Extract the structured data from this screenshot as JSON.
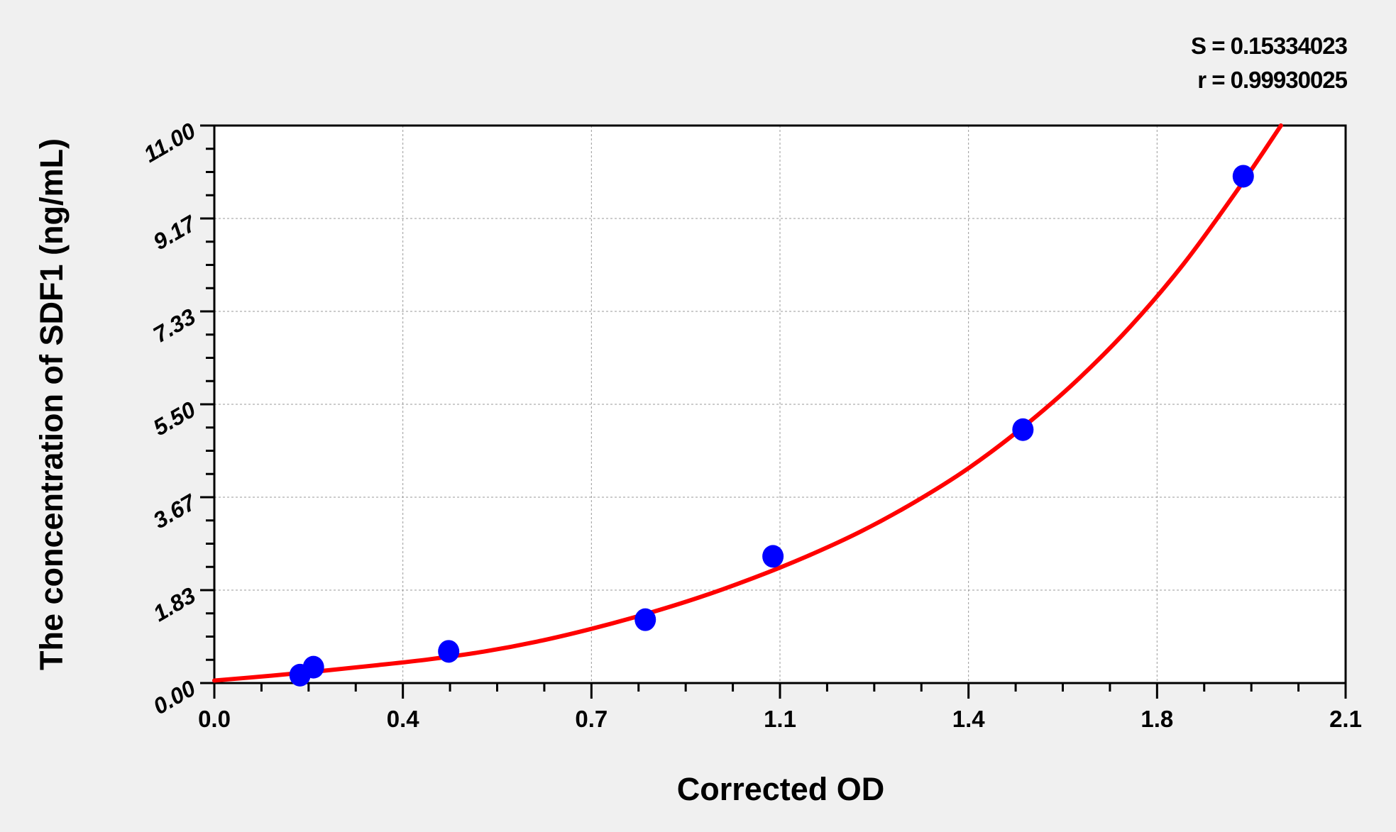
{
  "chart_data": {
    "type": "scatter",
    "xlabel": "Corrected OD",
    "ylabel": "The concentration of SDF1 (ng/mL)",
    "xlim": [
      0,
      2.1
    ],
    "ylim": [
      0,
      11
    ],
    "x_tick_values": [
      0,
      0.35,
      0.7,
      1.05,
      1.4,
      1.75,
      2.1
    ],
    "x_tick_labels": [
      "0.0",
      "0.4",
      "0.7",
      "1.1",
      "1.4",
      "1.8",
      "2.1"
    ],
    "y_tick_values": [
      0,
      1.8333,
      3.6667,
      5.5,
      7.3333,
      9.1667,
      11
    ],
    "y_tick_labels": [
      "0.00",
      "1.83",
      "3.67",
      "5.50",
      "7.33",
      "9.17",
      "11.00"
    ],
    "grid": true,
    "annotations": {
      "s": "S = 0.15334023",
      "r": "r = 0.99930025"
    },
    "series": [
      {
        "kind": "points",
        "color": "#0000ff",
        "x": [
          0.159,
          0.184,
          0.435,
          0.8,
          1.037,
          1.501,
          1.91
        ],
        "y": [
          0.156,
          0.313,
          0.625,
          1.25,
          2.5,
          5.0,
          10.0
        ]
      },
      {
        "kind": "fit-curve",
        "color": "#ff0000",
        "x": [
          0,
          0.1,
          0.2,
          0.3,
          0.4,
          0.5,
          0.6,
          0.7,
          0.8,
          0.9,
          1.0,
          1.1,
          1.2,
          1.3,
          1.4,
          1.5,
          1.6,
          1.7,
          1.8,
          1.9,
          1.98
        ],
        "y": [
          0.05,
          0.14,
          0.24,
          0.35,
          0.47,
          0.62,
          0.82,
          1.07,
          1.36,
          1.69,
          2.07,
          2.5,
          2.99,
          3.57,
          4.24,
          5.04,
          5.96,
          7.03,
          8.28,
          9.74,
          11.0
        ]
      }
    ]
  }
}
